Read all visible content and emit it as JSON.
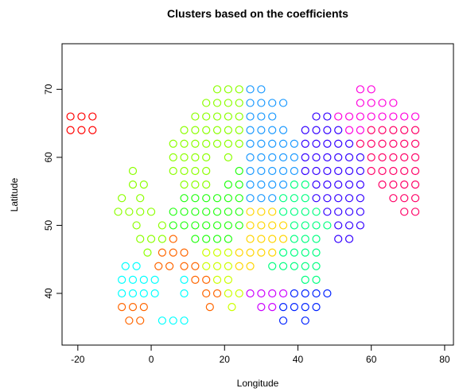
{
  "chart_data": {
    "type": "scatter",
    "title": "Clusters based on the coefficients",
    "x_label": "Longitude",
    "y_label": "Latitude",
    "xlim": [
      -24.3,
      82.4
    ],
    "ylim": [
      32.4,
      76.7
    ],
    "xticks": [
      -20,
      0,
      20,
      40,
      60,
      80
    ],
    "yticks": [
      40,
      50,
      60,
      70
    ],
    "series": [
      {
        "color": "#ff0000",
        "x": [
          -22,
          -19,
          -16,
          -22,
          -19,
          -16
        ],
        "y": [
          64,
          64,
          64,
          66,
          66,
          66
        ]
      },
      {
        "color": "#00ffff",
        "x": [
          -8,
          -5,
          -2,
          1,
          -8,
          -5,
          -2,
          1,
          -7,
          -4,
          9,
          9,
          3,
          6,
          9
        ],
        "y": [
          40,
          40,
          40,
          40,
          42,
          42,
          42,
          42,
          44,
          44,
          40,
          42,
          36,
          36,
          36
        ]
      },
      {
        "color": "#ff6600",
        "x": [
          -6,
          -3,
          -8,
          -5,
          -2,
          2,
          5,
          3,
          6,
          9,
          6,
          9,
          12,
          12,
          15,
          15,
          18,
          16
        ],
        "y": [
          36,
          36,
          38,
          38,
          38,
          44,
          44,
          46,
          46,
          46,
          48,
          44,
          44,
          42,
          42,
          40,
          40,
          38
        ]
      },
      {
        "color": "#8cff00",
        "x": [
          18,
          21,
          24,
          15,
          18,
          21,
          12,
          15,
          18,
          21,
          9,
          12,
          15,
          18,
          6,
          9,
          12,
          15,
          18,
          6,
          9,
          12,
          15,
          6,
          9,
          12,
          15,
          9,
          12,
          15,
          -5,
          -5,
          -2,
          -3,
          -3,
          0,
          -4,
          -8,
          -9,
          -6,
          -3,
          0,
          3,
          -1,
          3,
          24,
          24,
          21,
          24,
          21,
          24,
          21
        ],
        "y": [
          70,
          70,
          70,
          68,
          68,
          68,
          66,
          66,
          66,
          66,
          64,
          64,
          64,
          64,
          62,
          62,
          62,
          62,
          62,
          60,
          60,
          60,
          60,
          58,
          58,
          58,
          58,
          56,
          56,
          56,
          58,
          56,
          56,
          54,
          52,
          52,
          50,
          54,
          52,
          52,
          48,
          48,
          48,
          46,
          50,
          68,
          66,
          64,
          64,
          62,
          62,
          60
        ]
      },
      {
        "color": "#22ff11",
        "x": [
          24,
          21,
          24,
          9,
          12,
          15,
          18,
          21,
          24,
          6,
          9,
          12,
          15,
          18,
          21,
          24,
          6,
          9,
          12,
          15,
          18,
          21,
          24,
          12,
          15,
          18,
          21
        ],
        "y": [
          58,
          56,
          56,
          54,
          54,
          54,
          54,
          54,
          54,
          52,
          52,
          52,
          52,
          52,
          52,
          52,
          50,
          50,
          50,
          50,
          50,
          50,
          50,
          48,
          48,
          48,
          48
        ]
      },
      {
        "color": "#ccff00",
        "x": [
          15,
          18,
          21,
          15,
          18,
          21,
          18,
          21,
          21,
          24,
          22
        ],
        "y": [
          46,
          46,
          46,
          44,
          44,
          44,
          42,
          42,
          40,
          40,
          38
        ]
      },
      {
        "color": "#ffd500",
        "x": [
          27,
          30,
          33,
          27,
          30,
          33,
          36,
          27,
          30,
          33,
          36,
          24,
          27,
          30,
          33,
          24,
          27
        ],
        "y": [
          52,
          52,
          52,
          50,
          50,
          50,
          50,
          48,
          48,
          48,
          48,
          46,
          46,
          46,
          46,
          44,
          44
        ]
      },
      {
        "color": "#1a99ff",
        "x": [
          27,
          30,
          27,
          30,
          33,
          36,
          27,
          30,
          33,
          27,
          30,
          33,
          36,
          27,
          30,
          33,
          36,
          39,
          27,
          30,
          33,
          36,
          39,
          27,
          30,
          33,
          36,
          39,
          27,
          30,
          33,
          36,
          27,
          30,
          33
        ],
        "y": [
          70,
          70,
          68,
          68,
          68,
          68,
          66,
          66,
          66,
          64,
          64,
          64,
          64,
          62,
          62,
          62,
          62,
          62,
          60,
          60,
          60,
          60,
          60,
          58,
          58,
          58,
          58,
          58,
          56,
          56,
          56,
          56,
          54,
          54,
          54
        ]
      },
      {
        "color": "#00ff80",
        "x": [
          39,
          42,
          36,
          39,
          42,
          36,
          39,
          42,
          45,
          39,
          42,
          45,
          48,
          39,
          42,
          45,
          36,
          39,
          42,
          45,
          33,
          36,
          39,
          42,
          45,
          42,
          45
        ],
        "y": [
          56,
          56,
          54,
          54,
          54,
          52,
          52,
          52,
          52,
          50,
          50,
          50,
          50,
          48,
          48,
          48,
          46,
          46,
          46,
          46,
          44,
          44,
          44,
          44,
          44,
          42,
          42
        ]
      },
      {
        "color": "#3300ff",
        "x": [
          45,
          48,
          42,
          45,
          48,
          51,
          42,
          45,
          48,
          51,
          54,
          42,
          45,
          48,
          51,
          54,
          57,
          42,
          45,
          48,
          51,
          54,
          57,
          45,
          48,
          51,
          54,
          57,
          45,
          48,
          51,
          54,
          57,
          48,
          51,
          54,
          57,
          51,
          54,
          57,
          51,
          54
        ],
        "y": [
          66,
          66,
          64,
          64,
          64,
          64,
          62,
          62,
          62,
          62,
          62,
          60,
          60,
          60,
          60,
          60,
          60,
          58,
          58,
          58,
          58,
          58,
          58,
          56,
          56,
          56,
          56,
          56,
          54,
          54,
          54,
          54,
          54,
          52,
          52,
          52,
          52,
          50,
          50,
          50,
          48,
          48
        ]
      },
      {
        "color": "#ff00dd",
        "x": [
          57,
          60,
          57,
          60,
          63,
          66,
          51,
          54,
          57,
          60,
          63,
          66,
          69,
          72,
          54,
          57
        ],
        "y": [
          70,
          70,
          68,
          68,
          68,
          68,
          66,
          66,
          66,
          66,
          66,
          66,
          66,
          66,
          64,
          64
        ]
      },
      {
        "color": "#ff0066",
        "x": [
          60,
          63,
          66,
          69,
          72,
          57,
          60,
          63,
          66,
          69,
          72,
          60,
          63,
          66,
          69,
          72,
          60,
          63,
          66,
          69,
          72,
          63,
          66,
          69,
          72,
          66,
          69,
          72,
          69,
          72
        ],
        "y": [
          64,
          64,
          64,
          64,
          64,
          62,
          62,
          62,
          62,
          62,
          62,
          60,
          60,
          60,
          60,
          60,
          58,
          58,
          58,
          58,
          58,
          56,
          56,
          56,
          56,
          54,
          54,
          54,
          52,
          52
        ]
      },
      {
        "color": "#cc00ff",
        "x": [
          27,
          30,
          33,
          36,
          30,
          33
        ],
        "y": [
          40,
          40,
          40,
          40,
          38,
          38
        ]
      },
      {
        "color": "#0022ff",
        "x": [
          39,
          42,
          45,
          48,
          36,
          39,
          42,
          45,
          36,
          42
        ],
        "y": [
          40,
          40,
          40,
          40,
          38,
          38,
          38,
          38,
          36,
          36
        ]
      }
    ]
  }
}
